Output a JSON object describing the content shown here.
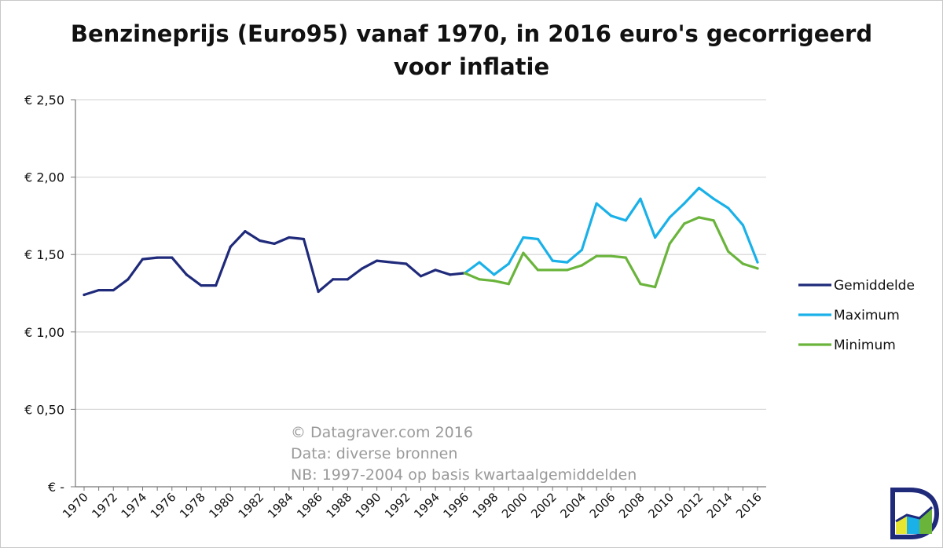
{
  "chart_data": {
    "type": "line",
    "title_lines": [
      "Benzineprijs (Euro95) vanaf 1970, in 2016 euro's gecorrigeerd",
      "voor inflatie"
    ],
    "xlabel": "",
    "ylabel": "",
    "ylim": [
      0,
      2.5
    ],
    "y_ticks": [
      {
        "value": 0,
        "label": "€ -"
      },
      {
        "value": 0.5,
        "label": "€ 0,50"
      },
      {
        "value": 1.0,
        "label": "€ 1,00"
      },
      {
        "value": 1.5,
        "label": "€ 1,50"
      },
      {
        "value": 2.0,
        "label": "€ 2,00"
      },
      {
        "value": 2.5,
        "label": "€ 2,50"
      }
    ],
    "x_ticks": [
      "1970",
      "1972",
      "1974",
      "1976",
      "1978",
      "1980",
      "1982",
      "1984",
      "1986",
      "1988",
      "1990",
      "1992",
      "1994",
      "1996",
      "1998",
      "2000",
      "2002",
      "2004",
      "2006",
      "2008",
      "2010",
      "2012",
      "2014",
      "2016"
    ],
    "x_range": [
      1970,
      2016
    ],
    "grid": true,
    "legend_position": "right",
    "series": [
      {
        "name": "Gemiddelde",
        "color": "#1f2a7a",
        "points": [
          [
            1970,
            1.24
          ],
          [
            1971,
            1.27
          ],
          [
            1972,
            1.27
          ],
          [
            1973,
            1.34
          ],
          [
            1974,
            1.47
          ],
          [
            1975,
            1.48
          ],
          [
            1976,
            1.48
          ],
          [
            1977,
            1.37
          ],
          [
            1978,
            1.3
          ],
          [
            1979,
            1.3
          ],
          [
            1980,
            1.55
          ],
          [
            1981,
            1.65
          ],
          [
            1982,
            1.59
          ],
          [
            1983,
            1.57
          ],
          [
            1984,
            1.61
          ],
          [
            1985,
            1.6
          ],
          [
            1986,
            1.26
          ],
          [
            1987,
            1.34
          ],
          [
            1988,
            1.34
          ],
          [
            1989,
            1.41
          ],
          [
            1990,
            1.46
          ],
          [
            1991,
            1.45
          ],
          [
            1992,
            1.44
          ],
          [
            1993,
            1.36
          ],
          [
            1994,
            1.4
          ],
          [
            1995,
            1.37
          ],
          [
            1996,
            1.38
          ]
        ]
      },
      {
        "name": "Maximum",
        "color": "#1ab1e8",
        "points": [
          [
            1996,
            1.38
          ],
          [
            1997,
            1.45
          ],
          [
            1998,
            1.37
          ],
          [
            1999,
            1.44
          ],
          [
            2000,
            1.61
          ],
          [
            2001,
            1.6
          ],
          [
            2002,
            1.46
          ],
          [
            2003,
            1.45
          ],
          [
            2004,
            1.53
          ],
          [
            2005,
            1.83
          ],
          [
            2006,
            1.75
          ],
          [
            2007,
            1.72
          ],
          [
            2008,
            1.86
          ],
          [
            2009,
            1.61
          ],
          [
            2010,
            1.74
          ],
          [
            2011,
            1.83
          ],
          [
            2012,
            1.93
          ],
          [
            2013,
            1.86
          ],
          [
            2014,
            1.8
          ],
          [
            2015,
            1.69
          ],
          [
            2016,
            1.45
          ]
        ]
      },
      {
        "name": "Minimum",
        "color": "#6ab43c",
        "points": [
          [
            1996,
            1.38
          ],
          [
            1997,
            1.34
          ],
          [
            1998,
            1.33
          ],
          [
            1999,
            1.31
          ],
          [
            2000,
            1.51
          ],
          [
            2001,
            1.4
          ],
          [
            2002,
            1.4
          ],
          [
            2003,
            1.4
          ],
          [
            2004,
            1.43
          ],
          [
            2005,
            1.49
          ],
          [
            2006,
            1.49
          ],
          [
            2007,
            1.48
          ],
          [
            2008,
            1.31
          ],
          [
            2009,
            1.29
          ],
          [
            2010,
            1.57
          ],
          [
            2011,
            1.7
          ],
          [
            2012,
            1.74
          ],
          [
            2013,
            1.72
          ],
          [
            2014,
            1.52
          ],
          [
            2015,
            1.44
          ],
          [
            2016,
            1.41
          ]
        ]
      }
    ],
    "annotations": [
      "© Datagraver.com 2016",
      "Data: diverse bronnen",
      "NB: 1997-2004 op basis kwartaalgemiddelden"
    ]
  },
  "logo": {
    "letter": "D",
    "colors": [
      "#1f2a7a",
      "#e6e632",
      "#1ab1e8",
      "#6ab43c"
    ]
  }
}
